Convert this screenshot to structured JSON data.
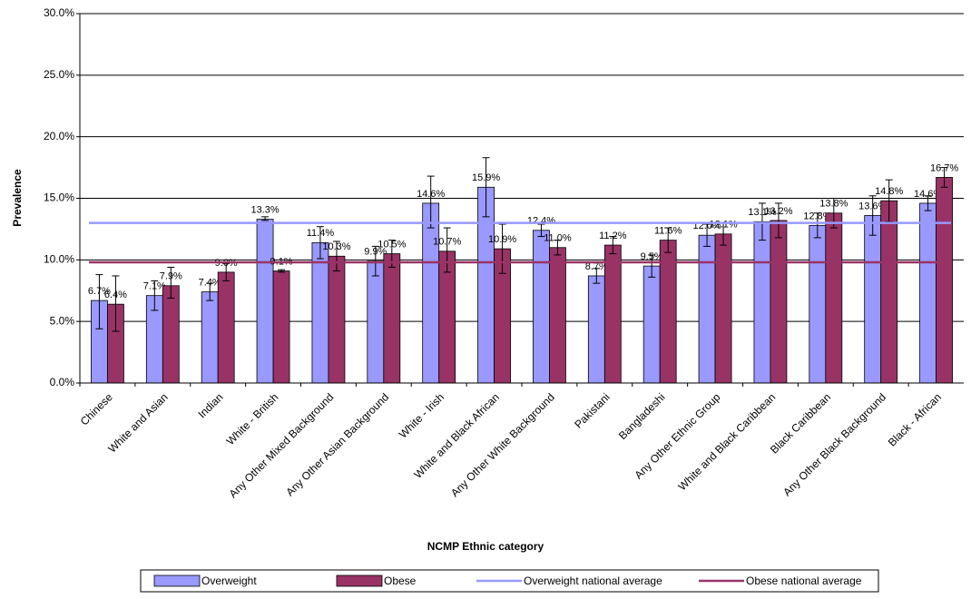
{
  "chart_data": {
    "type": "bar",
    "x_label": "NCMP Ethnic category",
    "y_label": "Prevalence",
    "categories": [
      "Chinese",
      "White and Asian",
      "Indian",
      "White - British",
      "Any Other Mixed Background",
      "Any Other Asian Background",
      "White - Irish",
      "White and Black African",
      "Any Other White Background",
      "Pakistani",
      "Bangladeshi",
      "Any Other Ethnic Group",
      "White and Black Caribbean",
      "Black Caribbean",
      "Any Other Black Background",
      "Black - African"
    ],
    "series": [
      {
        "name": "Overweight",
        "color": "#9999ff",
        "values": [
          6.7,
          7.1,
          7.4,
          13.3,
          11.4,
          9.9,
          14.6,
          15.9,
          12.4,
          8.7,
          9.5,
          12.0,
          13.1,
          12.8,
          13.6,
          14.6
        ],
        "value_labels": [
          "6.7%",
          "7.1%",
          "7.4%",
          "13.3%",
          "11.4%",
          "9.9%",
          "14.6%",
          "15.9%",
          "12.4%",
          "8.7%",
          "9.5%",
          "12.0%",
          "13.1%",
          "12.8%",
          "13.6%",
          "14.6%"
        ],
        "ci_low": [
          4.4,
          5.9,
          6.7,
          13.2,
          10.1,
          8.7,
          12.6,
          13.5,
          11.9,
          8.1,
          8.6,
          11.1,
          11.6,
          11.8,
          12.0,
          14.0
        ],
        "ci_high": [
          8.8,
          8.3,
          8.1,
          13.5,
          12.7,
          11.1,
          16.8,
          18.3,
          12.9,
          9.3,
          10.4,
          12.9,
          14.6,
          13.8,
          15.2,
          15.2
        ]
      },
      {
        "name": "Obese",
        "color": "#993366",
        "values": [
          6.4,
          7.9,
          9.0,
          9.1,
          10.3,
          10.5,
          10.7,
          10.9,
          11.0,
          11.2,
          11.6,
          12.1,
          13.2,
          13.8,
          14.8,
          16.7
        ],
        "value_labels": [
          "6.4%",
          "7.9%",
          "9.0%",
          "9.1%",
          "10.3%",
          "10.5%",
          "10.7%",
          "10.9%",
          "11.0%",
          "11.2%",
          "11.6%",
          "12.1%",
          "13.2%",
          "13.8%",
          "14.8%",
          "16.7%"
        ],
        "ci_low": [
          4.2,
          6.9,
          8.3,
          9.0,
          9.1,
          9.4,
          9.0,
          8.9,
          10.4,
          10.5,
          10.6,
          11.2,
          11.8,
          12.6,
          13.1,
          15.9
        ],
        "ci_high": [
          8.7,
          9.4,
          9.7,
          9.2,
          11.5,
          11.6,
          12.6,
          12.9,
          11.6,
          11.9,
          12.6,
          13.0,
          14.6,
          15.0,
          16.5,
          17.5
        ]
      }
    ],
    "reference_lines": [
      {
        "name": "Overweight national average",
        "color": "#9999ff",
        "value": 13.0
      },
      {
        "name": "Obese national average",
        "color": "#993366",
        "value": 9.8
      }
    ],
    "ylim": [
      0,
      30
    ],
    "yticks": [
      {
        "value": 0,
        "label": "0.0%"
      },
      {
        "value": 5,
        "label": "5.0%"
      },
      {
        "value": 10,
        "label": "10.0%"
      },
      {
        "value": 15,
        "label": "15.0%"
      },
      {
        "value": 20,
        "label": "20.0%"
      },
      {
        "value": 25,
        "label": "25.0%"
      },
      {
        "value": 30,
        "label": "30.0%"
      }
    ],
    "grid": true,
    "legend": "bottom"
  }
}
